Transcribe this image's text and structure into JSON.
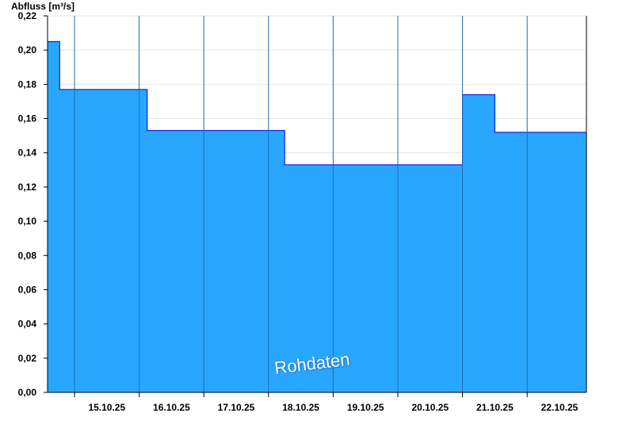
{
  "chart_data": {
    "type": "area",
    "title": "",
    "ylabel": "Abfluss [m³/s]",
    "xlabel": "",
    "ylim": [
      0,
      0.22
    ],
    "xlim": [
      "2025-10-14 14:00",
      "2025-10-22 22:00"
    ],
    "grid": "horizontal",
    "y_ticks": [
      "0,00",
      "0,02",
      "0,04",
      "0,06",
      "0,08",
      "0,10",
      "0,12",
      "0,14",
      "0,16",
      "0,18",
      "0,20",
      "0,22"
    ],
    "x_ticks": [
      "15.10.25",
      "16.10.25",
      "17.10.25",
      "18.10.25",
      "19.10.25",
      "20.10.25",
      "21.10.25",
      "22.10.25"
    ],
    "fill_color": "#29a7ff",
    "line_color": "#0000cc",
    "series": [
      {
        "x": [
          "2025-10-14 14:00",
          "2025-10-14 17:30",
          "2025-10-14 18:30",
          "2025-10-15 00:00",
          "2025-10-15 12:00",
          "2025-10-15 22:00",
          "2025-10-16 03:00",
          "2025-10-16 12:00",
          "2025-10-17 12:00",
          "2025-10-18 00:00",
          "2025-10-18 06:00",
          "2025-10-18 12:00",
          "2025-10-19 12:00",
          "2025-10-20 08:00",
          "2025-10-20 16:00",
          "2025-10-20 22:30",
          "2025-10-21 00:00",
          "2025-10-21 12:00",
          "2025-10-22 12:00",
          "2025-10-22 22:00"
        ],
        "y": [
          0.205,
          0.205,
          0.177,
          0.177,
          0.177,
          0.177,
          0.153,
          0.153,
          0.153,
          0.153,
          0.133,
          0.133,
          0.133,
          0.133,
          0.133,
          0.133,
          0.174,
          0.152,
          0.152,
          0.152
        ]
      }
    ]
  },
  "watermark": "Rohdaten"
}
